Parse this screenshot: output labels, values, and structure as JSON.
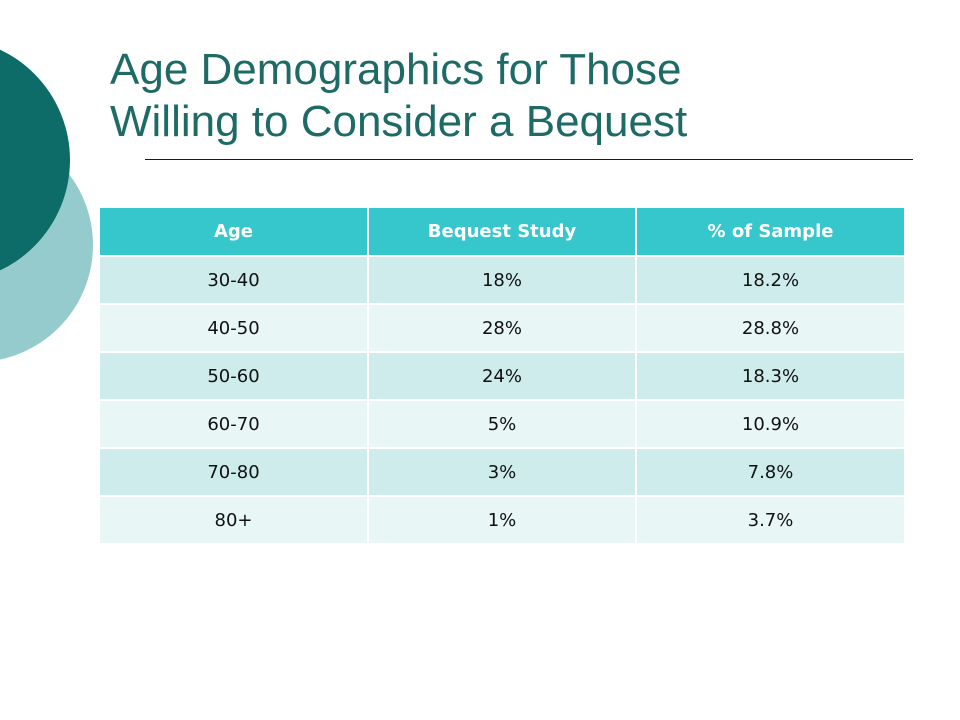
{
  "slide": {
    "title_lines": [
      "Age Demographics for Those",
      "Willing to Consider a Bequest"
    ]
  },
  "table": {
    "headers": [
      "Age",
      "Bequest Study",
      "% of Sample"
    ],
    "rows": [
      [
        "30-40",
        "18%",
        "18.2%"
      ],
      [
        "40-50",
        "28%",
        "28.8%"
      ],
      [
        "50-60",
        "24%",
        "18.3%"
      ],
      [
        "60-70",
        "5%",
        "10.9%"
      ],
      [
        "70-80",
        "3%",
        "7.8%"
      ],
      [
        "80+",
        "1%",
        "3.7%"
      ]
    ]
  },
  "colors": {
    "title": "#1e6b66",
    "header_bg": "#36c7cc",
    "row_dark": "#cdeceb",
    "row_light": "#e8f6f5",
    "decor_dark": "#0d6b68",
    "decor_light": "#96cbcd"
  }
}
